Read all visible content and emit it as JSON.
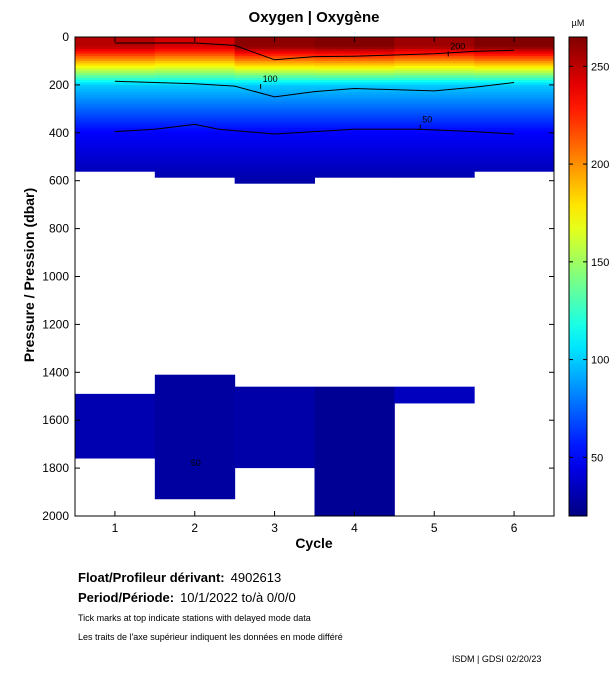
{
  "chart_data": {
    "type": "heatmap",
    "title": "Oxygen | Oxygène",
    "xlabel": "Cycle",
    "ylabel": "Pressure / Pression (dbar)",
    "colorbar_unit": "µM",
    "colorbar_range": [
      20,
      265
    ],
    "colorbar_ticks": [
      50,
      100,
      150,
      200,
      250
    ],
    "x_range": [
      0.5,
      6.5
    ],
    "x_ticks": [
      1,
      2,
      3,
      4,
      5,
      6
    ],
    "y_range": [
      0,
      2000
    ],
    "y_ticks": [
      0,
      200,
      400,
      600,
      800,
      1000,
      1200,
      1400,
      1600,
      1800,
      2000
    ],
    "cycles": [
      {
        "cycle": 1,
        "upper_depth_max": 560,
        "deep_segment": [
          1490,
          1760
        ],
        "surface_o2": 252,
        "deep_o2": 32
      },
      {
        "cycle": 2,
        "upper_depth_max": 585,
        "deep_segment": [
          1410,
          1930
        ],
        "surface_o2": 245,
        "deep_o2": 28
      },
      {
        "cycle": 3,
        "upper_depth_max": 610,
        "deep_segment": [
          1460,
          1800
        ],
        "surface_o2": 262,
        "deep_o2": 30
      },
      {
        "cycle": 4,
        "upper_depth_max": 585,
        "deep_segment": [
          1460,
          2000
        ],
        "surface_o2": 265,
        "deep_o2": 25
      },
      {
        "cycle": 5,
        "upper_depth_max": 585,
        "deep_segment": [
          1460,
          1530
        ],
        "surface_o2": 258,
        "deep_o2": 35
      },
      {
        "cycle": 6,
        "upper_depth_max": 560,
        "deep_segment": null,
        "surface_o2": 265,
        "deep_o2": null
      }
    ],
    "contours": [
      {
        "level": 200,
        "label": "200",
        "x": [
          1,
          2,
          2.5,
          3,
          3.5,
          4,
          5,
          5.5,
          6
        ],
        "y": [
          25,
          25,
          35,
          95,
          82,
          80,
          70,
          60,
          55
        ],
        "label_at": [
          5.2,
          52
        ]
      },
      {
        "level": 100,
        "label": "100",
        "x": [
          1,
          2,
          2.5,
          3,
          3.5,
          4,
          5,
          5.5,
          6
        ],
        "y": [
          185,
          195,
          205,
          250,
          228,
          215,
          225,
          210,
          190
        ],
        "label_at": [
          2.85,
          188
        ]
      },
      {
        "level": 50,
        "label": "50",
        "x": [
          1,
          1.5,
          2,
          2.3,
          3,
          3.5,
          4,
          4.8,
          5.5,
          6
        ],
        "y": [
          395,
          385,
          365,
          385,
          405,
          395,
          385,
          385,
          395,
          405
        ],
        "label_at": [
          4.85,
          358
        ]
      }
    ],
    "deep_contour_label": {
      "label": "50",
      "x": 1.95,
      "y": 1800
    }
  },
  "info": {
    "float_label": "Float/Profileur dérivant:",
    "float_id": "4902613",
    "period_label": "Period/Période:",
    "period_value": "10/1/2022  to/à  0/0/0",
    "note_en": "Tick marks at top indicate stations with delayed mode data",
    "note_fr": "Les traits de l'axe supérieur indiquent les données en mode différé",
    "credit": "ISDM | GDSI  02/20/23"
  }
}
